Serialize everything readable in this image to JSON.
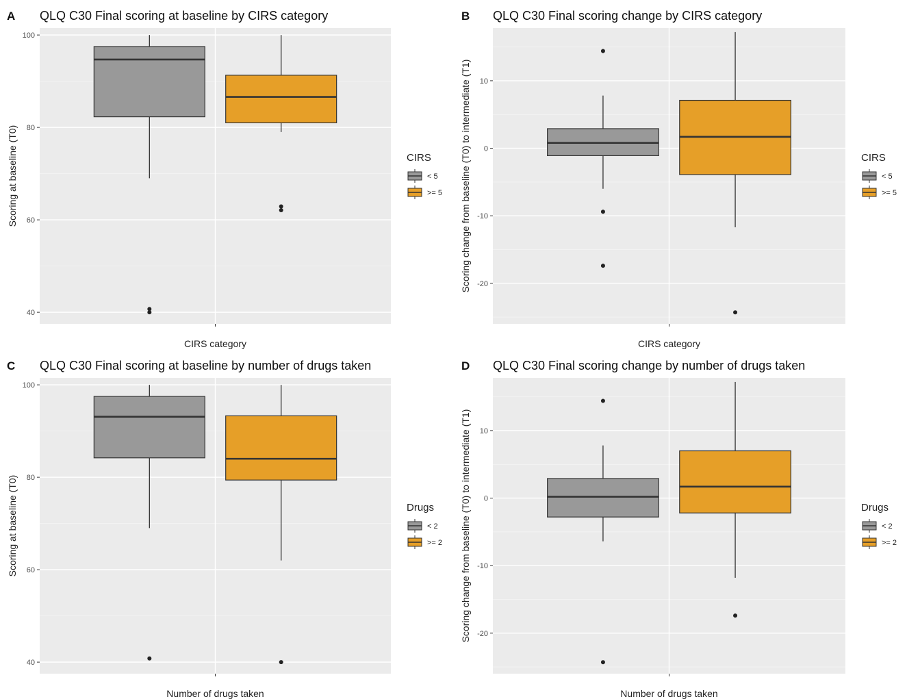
{
  "colors": {
    "panel_bg": "#ebebeb",
    "grid_major": "#ffffff",
    "grid_minor": "#f5f5f5",
    "group1_fill": "#999999",
    "group2_fill": "#e69f28",
    "box_stroke": "#333333",
    "median_stroke": "#333333"
  },
  "chart_data": [
    {
      "panel": "A",
      "type": "box",
      "title": "QLQ C30 Final scoring at baseline by CIRS category",
      "xlabel": "CIRS category",
      "ylabel": "Scoring at baseline (T0)",
      "ylim": [
        37.5,
        101.5
      ],
      "yticks": [
        40,
        60,
        80,
        100
      ],
      "legend": {
        "title": "CIRS",
        "position": "right"
      },
      "series": [
        {
          "name": "< 5",
          "color": "#999999",
          "min": 69,
          "q1": 82.3,
          "median": 94.7,
          "q3": 97.5,
          "max": 100,
          "outliers": [
            40.7,
            40.0
          ]
        },
        {
          "name": ">= 5",
          "color": "#e69f28",
          "min": 79,
          "q1": 81.0,
          "median": 86.6,
          "q3": 91.3,
          "max": 100,
          "outliers": [
            62.9,
            62.1
          ]
        }
      ]
    },
    {
      "panel": "B",
      "type": "box",
      "title": "QLQ C30 Final scoring change by CIRS category",
      "xlabel": "CIRS category",
      "ylabel": "Scoring change from baseline (T0) to intermediate (T1)",
      "ylim": [
        -26,
        17.8
      ],
      "yticks": [
        -20,
        -10,
        0,
        10
      ],
      "legend": {
        "title": "CIRS",
        "position": "right"
      },
      "series": [
        {
          "name": "< 5",
          "color": "#999999",
          "min": -6,
          "q1": -1.1,
          "median": 0.8,
          "q3": 2.9,
          "max": 7.8,
          "outliers": [
            14.4,
            -9.4,
            -17.4
          ]
        },
        {
          "name": ">= 5",
          "color": "#e69f28",
          "min": -11.7,
          "q1": -3.9,
          "median": 1.7,
          "q3": 7.1,
          "max": 17.2,
          "outliers": [
            -24.3
          ]
        }
      ]
    },
    {
      "panel": "C",
      "type": "box",
      "title": "QLQ C30 Final scoring at baseline by number of drugs taken",
      "xlabel": "Number of drugs taken",
      "ylabel": "Scoring at baseline (T0)",
      "ylim": [
        37.5,
        101.5
      ],
      "yticks": [
        40,
        60,
        80,
        100
      ],
      "legend": {
        "title": "Drugs",
        "position": "right"
      },
      "series": [
        {
          "name": "< 2",
          "color": "#999999",
          "min": 69,
          "q1": 84.2,
          "median": 93.1,
          "q3": 97.5,
          "max": 100,
          "outliers": [
            40.8
          ]
        },
        {
          "name": ">= 2",
          "color": "#e69f28",
          "min": 62,
          "q1": 79.4,
          "median": 84.0,
          "q3": 93.3,
          "max": 100,
          "outliers": [
            40.0
          ]
        }
      ]
    },
    {
      "panel": "D",
      "type": "box",
      "title": "QLQ C30 Final scoring change by number of drugs taken",
      "xlabel": "Number of drugs taken",
      "ylabel": "Scoring change from baseline (T0) to intermediate (T1)",
      "ylim": [
        -26,
        17.8
      ],
      "yticks": [
        -20,
        -10,
        0,
        10
      ],
      "legend": {
        "title": "Drugs",
        "position": "right"
      },
      "series": [
        {
          "name": "< 2",
          "color": "#999999",
          "min": -6.4,
          "q1": -2.8,
          "median": 0.2,
          "q3": 2.9,
          "max": 7.8,
          "outliers": [
            14.4,
            -24.3
          ]
        },
        {
          "name": ">= 2",
          "color": "#e69f28",
          "min": -11.8,
          "q1": -2.2,
          "median": 1.7,
          "q3": 7.0,
          "max": 17.2,
          "outliers": [
            -17.4
          ]
        }
      ]
    }
  ]
}
